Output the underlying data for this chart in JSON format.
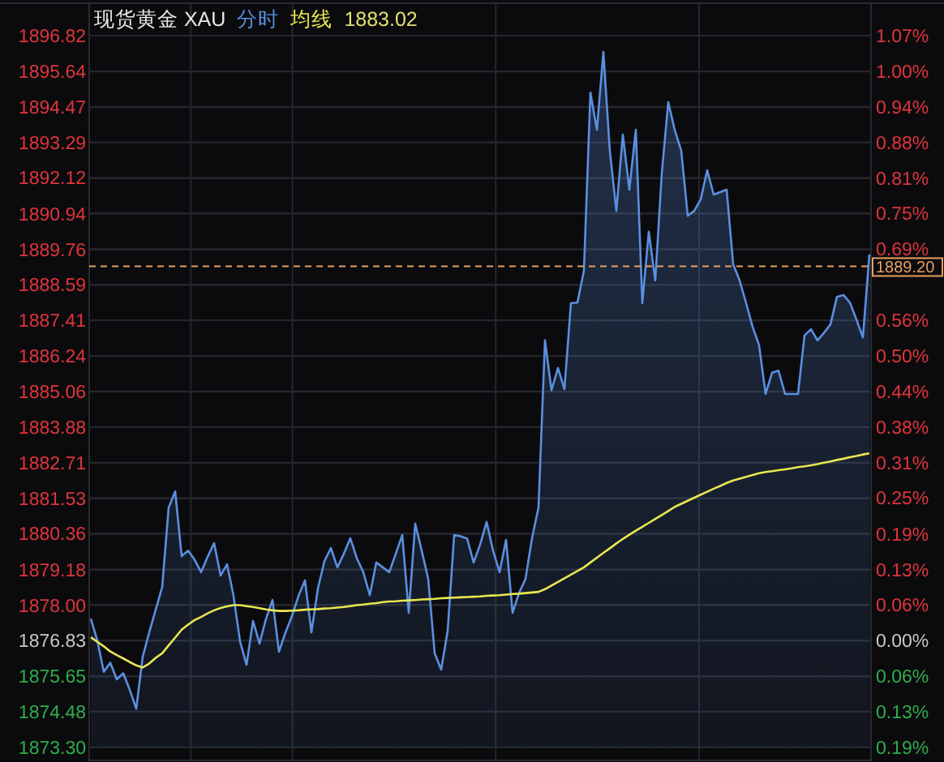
{
  "chart_data": {
    "type": "line",
    "title": "现货黄金 XAU",
    "annotations": [
      "1883.02"
    ],
    "grid": true,
    "tick_labels": "y",
    "categories": [
      null,
      null,
      null,
      null,
      null,
      null,
      null,
      null,
      null,
      null,
      null,
      null,
      null,
      null,
      null,
      null,
      null,
      null,
      null,
      null,
      null,
      null,
      null,
      null,
      null,
      null,
      null,
      null,
      null,
      null,
      null,
      null,
      null,
      null,
      null,
      null,
      null,
      null,
      null,
      null,
      null,
      null,
      null,
      null,
      null,
      null,
      null,
      null,
      null,
      null,
      null,
      null,
      null,
      null,
      null,
      null,
      null,
      null,
      null,
      null,
      null,
      null,
      null,
      null,
      null,
      null,
      null,
      null,
      null,
      null,
      null,
      null,
      null,
      null,
      null,
      null,
      null,
      null,
      null,
      null,
      null,
      null,
      null,
      null,
      null,
      null,
      null,
      null,
      null,
      null,
      null,
      null,
      null,
      null,
      null,
      null,
      null,
      null,
      null,
      null,
      null,
      null,
      null,
      null,
      null,
      null,
      null,
      null,
      null,
      null,
      null,
      null,
      null,
      null,
      null,
      null,
      null,
      null,
      null,
      null,
      null
    ],
    "ylim": [
      1873.3,
      1896.82
    ],
    "yticks": [
      {
        "value": 1873.3,
        "label": "1873.30"
      },
      {
        "value": 1874.48,
        "label": "1874.48"
      },
      {
        "value": 1875.65,
        "label": "1875.65"
      },
      {
        "value": 1876.83,
        "label": "1876.83"
      },
      {
        "value": 1878.0,
        "label": "1878.00"
      },
      {
        "value": 1879.18,
        "label": "1879.18"
      },
      {
        "value": 1880.36,
        "label": "1880.36"
      },
      {
        "value": 1881.53,
        "label": "1881.53"
      },
      {
        "value": 1882.71,
        "label": "1882.71"
      },
      {
        "value": 1883.88,
        "label": "1883.88"
      },
      {
        "value": 1885.06,
        "label": "1885.06"
      },
      {
        "value": 1886.24,
        "label": "1886.24"
      },
      {
        "value": 1887.41,
        "label": "1887.41"
      },
      {
        "value": 1888.59,
        "label": "1888.59"
      },
      {
        "value": 1889.76,
        "label": "1889.76"
      },
      {
        "value": 1890.94,
        "label": "1890.94"
      },
      {
        "value": 1892.12,
        "label": "1892.12"
      },
      {
        "value": 1893.29,
        "label": "1893.29"
      },
      {
        "value": 1894.47,
        "label": "1894.47"
      },
      {
        "value": 1895.64,
        "label": "1895.64"
      },
      {
        "value": 1896.82,
        "label": "1896.82"
      }
    ],
    "y2lim": [
      -0.188,
      1.065
    ],
    "y2ticks": [
      {
        "value": -0.188,
        "label": "0.19%"
      },
      {
        "value": -0.125,
        "label": "0.13%"
      },
      {
        "value": -0.063,
        "label": "0.06%"
      },
      {
        "value": 0,
        "label": "0.00%"
      },
      {
        "value": 0.063,
        "label": "0.06%"
      },
      {
        "value": 0.125,
        "label": "0.13%"
      },
      {
        "value": 0.188,
        "label": "0.19%"
      },
      {
        "value": 0.251,
        "label": "0.25%"
      },
      {
        "value": 0.313,
        "label": "0.31%"
      },
      {
        "value": 0.376,
        "label": "0.38%"
      },
      {
        "value": 0.438,
        "label": "0.44%"
      },
      {
        "value": 0.501,
        "label": "0.50%"
      },
      {
        "value": 0.564,
        "label": "0.56%"
      },
      {
        "value": 0.626,
        "label": null
      },
      {
        "value": 0.689,
        "label": "0.69%"
      },
      {
        "value": 0.752,
        "label": "0.75%"
      },
      {
        "value": 0.814,
        "label": "0.81%"
      },
      {
        "value": 0.877,
        "label": "0.88%"
      },
      {
        "value": 0.939,
        "label": "0.94%"
      },
      {
        "value": 1.002,
        "label": "1.00%"
      },
      {
        "value": 1.065,
        "label": "1.07%"
      }
    ],
    "ref_lines": [
      {
        "axis": "y",
        "value": 1889.2,
        "label": "1889.20",
        "color": "#e8a060",
        "line_style": "dashed"
      }
    ],
    "series": [
      {
        "name": "分时",
        "type": "area",
        "color": "#5b8fe0",
        "values": [
          1877.55,
          1876.83,
          1875.8,
          1876.1,
          1875.55,
          1875.75,
          1875.2,
          1874.58,
          1876.3,
          1877.1,
          1877.85,
          1878.6,
          1881.23,
          1881.76,
          1879.62,
          1879.8,
          1879.5,
          1879.09,
          1879.6,
          1880.05,
          1878.98,
          1879.35,
          1878.3,
          1876.8,
          1876.03,
          1877.48,
          1876.73,
          1877.55,
          1878.17,
          1876.46,
          1877.1,
          1877.64,
          1878.3,
          1878.82,
          1877.1,
          1878.55,
          1879.45,
          1879.89,
          1879.25,
          1879.7,
          1880.21,
          1879.55,
          1879.09,
          1878.33,
          1879.41,
          1879.25,
          1879.09,
          1879.7,
          1880.32,
          1877.75,
          1880.69,
          1879.8,
          1878.87,
          1876.41,
          1875.87,
          1877.15,
          1880.32,
          1880.28,
          1880.2,
          1879.41,
          1880.0,
          1880.75,
          1879.8,
          1879.09,
          1880.16,
          1877.75,
          1878.4,
          1878.87,
          1880.21,
          1881.23,
          1886.75,
          1885.1,
          1885.84,
          1885.14,
          1887.98,
          1888.0,
          1889.05,
          1894.94,
          1893.71,
          1896.28,
          1893.0,
          1891.03,
          1893.55,
          1891.73,
          1893.71,
          1887.98,
          1890.34,
          1888.73,
          1892.27,
          1894.62,
          1893.7,
          1893.02,
          1890.87,
          1891.03,
          1891.41,
          1892.37,
          1891.57,
          1891.65,
          1891.73,
          1889.27,
          1888.73,
          1887.98,
          1887.2,
          1886.59,
          1884.98,
          1885.68,
          1885.75,
          1884.98,
          1884.98,
          1884.98,
          1886.91,
          1887.12,
          1886.75,
          1887.0,
          1887.28,
          1888.19,
          1888.25,
          1888.0,
          1887.44,
          1886.85,
          1889.59
        ]
      },
      {
        "name": "均线",
        "type": "line",
        "color": "#e8e850",
        "values": [
          1876.94,
          1876.79,
          1876.64,
          1876.47,
          1876.35,
          1876.24,
          1876.12,
          1876.01,
          1875.94,
          1876.07,
          1876.26,
          1876.41,
          1876.67,
          1876.93,
          1877.19,
          1877.36,
          1877.51,
          1877.61,
          1877.73,
          1877.83,
          1877.91,
          1877.96,
          1878.0,
          1878.0,
          1877.97,
          1877.94,
          1877.9,
          1877.86,
          1877.83,
          1877.81,
          1877.81,
          1877.82,
          1877.83,
          1877.85,
          1877.86,
          1877.87,
          1877.89,
          1877.9,
          1877.92,
          1877.94,
          1877.97,
          1878.0,
          1878.02,
          1878.05,
          1878.07,
          1878.1,
          1878.12,
          1878.13,
          1878.15,
          1878.16,
          1878.17,
          1878.19,
          1878.2,
          1878.21,
          1878.23,
          1878.24,
          1878.25,
          1878.26,
          1878.27,
          1878.28,
          1878.29,
          1878.31,
          1878.32,
          1878.33,
          1878.35,
          1878.37,
          1878.38,
          1878.4,
          1878.42,
          1878.44,
          1878.53,
          1878.65,
          1878.77,
          1878.89,
          1879.01,
          1879.13,
          1879.25,
          1879.41,
          1879.57,
          1879.73,
          1879.88,
          1880.04,
          1880.19,
          1880.33,
          1880.46,
          1880.59,
          1880.72,
          1880.85,
          1880.98,
          1881.11,
          1881.25,
          1881.35,
          1881.45,
          1881.55,
          1881.65,
          1881.75,
          1881.85,
          1881.94,
          1882.04,
          1882.12,
          1882.18,
          1882.24,
          1882.3,
          1882.36,
          1882.4,
          1882.43,
          1882.46,
          1882.49,
          1882.52,
          1882.56,
          1882.59,
          1882.62,
          1882.66,
          1882.71,
          1882.75,
          1882.8,
          1882.84,
          1882.89,
          1882.93,
          1882.98,
          1883.02
        ]
      }
    ]
  }
}
